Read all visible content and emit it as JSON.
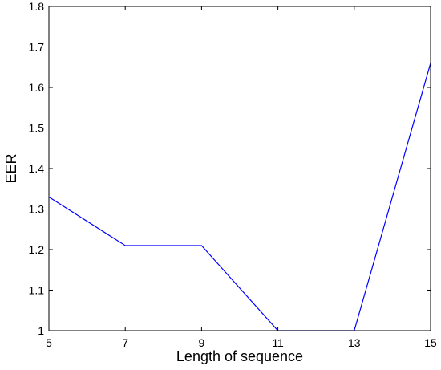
{
  "chart_data": {
    "type": "line",
    "title": "",
    "xlabel": "Length of sequence",
    "ylabel": "EER",
    "xlim": [
      5,
      15
    ],
    "ylim": [
      1,
      1.8
    ],
    "xticks": [
      "5",
      "7",
      "9",
      "11",
      "13",
      "15"
    ],
    "yticks": [
      "1",
      "1.1",
      "1.2",
      "1.3",
      "1.4",
      "1.5",
      "1.6",
      "1.7",
      "1.8"
    ],
    "grid": false,
    "series": [
      {
        "color": "#0000ff",
        "x": [
          5,
          7,
          9,
          11,
          13,
          15
        ],
        "y": [
          1.33,
          1.21,
          1.21,
          1.0,
          1.0,
          1.66
        ]
      }
    ]
  }
}
